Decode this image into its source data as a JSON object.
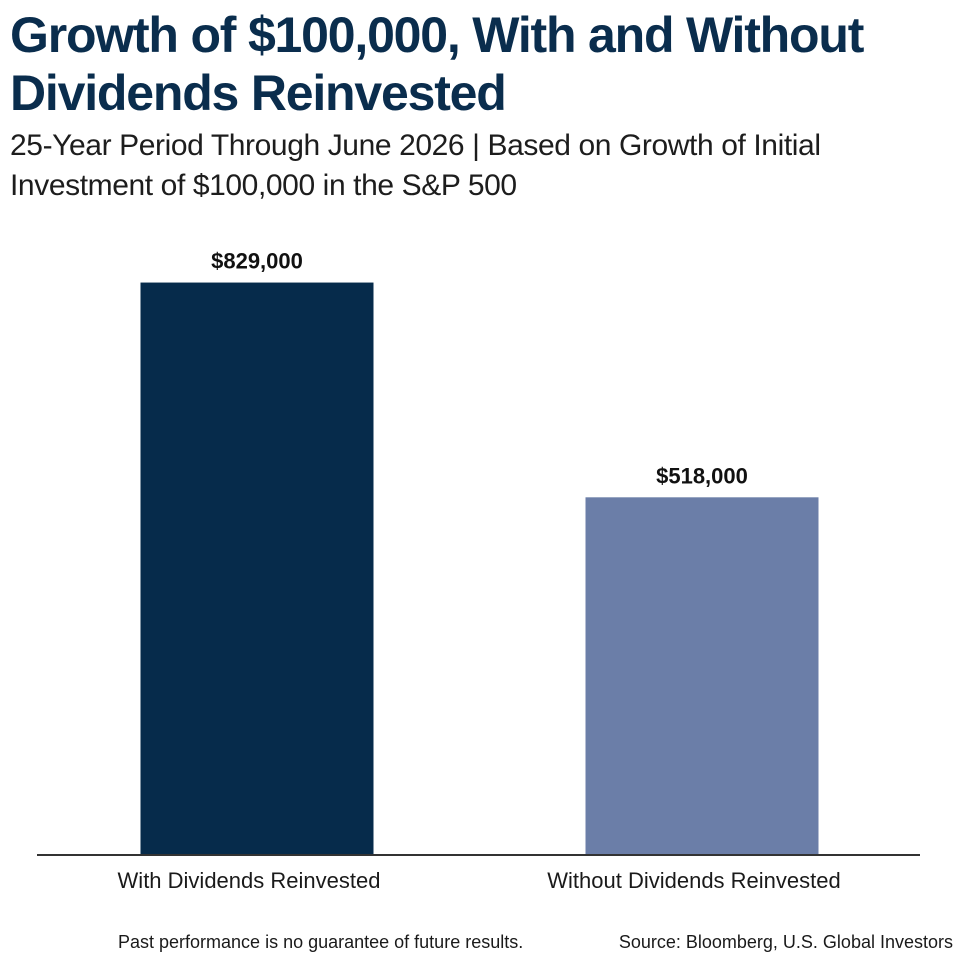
{
  "title": "Growth of $100,000, With and Without Dividends Reinvested",
  "subtitle": "25-Year Period Through June 2026 | Based on Growth of Initial Investment of $100,000 in the S&P 500",
  "footnote": "Past performance is no guarantee of future results.",
  "source": "Source: Bloomberg, U.S. Global Investors",
  "colors": {
    "title": "#0a2d4d",
    "with_dividends": "#062b4b",
    "without_dividends": "#6b7ea8",
    "axis": "#333333"
  },
  "chart_data": {
    "type": "bar",
    "categories": [
      "With Dividends Reinvested",
      "Without Dividends Reinvested"
    ],
    "values": [
      829000,
      518000
    ],
    "data_labels": [
      "$829,000",
      "$518,000"
    ],
    "ylim": [
      0,
      950000
    ],
    "grid": false,
    "legend": "none"
  }
}
